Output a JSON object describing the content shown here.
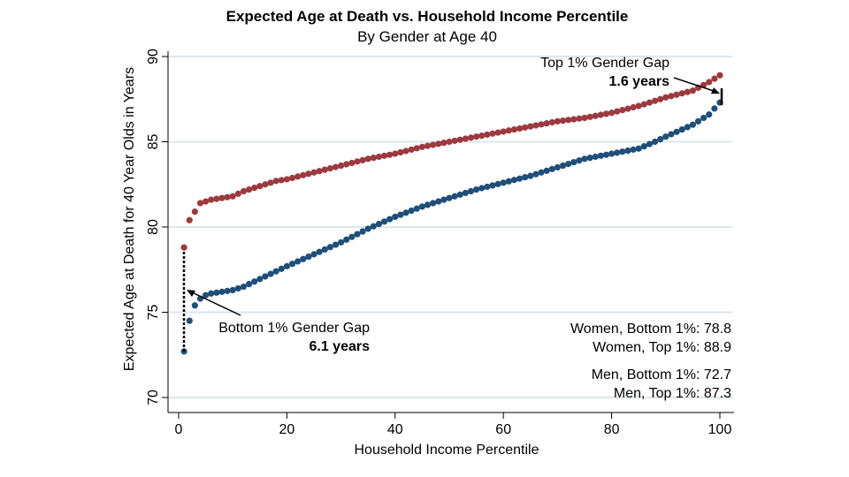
{
  "chart_data": {
    "type": "scatter",
    "title": "Expected Age at Death vs. Household Income Percentile",
    "subtitle": "By Gender at Age 40",
    "xlabel": "Household Income Percentile",
    "ylabel": "Expected Age at Death for 40 Year Olds in Years",
    "xlim": [
      0,
      100
    ],
    "ylim": [
      70,
      90
    ],
    "x_ticks": [
      "0",
      "20",
      "40",
      "60",
      "80",
      "100"
    ],
    "y_ticks": [
      "70",
      "75",
      "80",
      "85",
      "90"
    ],
    "grid": "horizontal",
    "series": [
      {
        "color": "#9b3a3f",
        "x": [
          1,
          2,
          3,
          4,
          5,
          6,
          8,
          10,
          12,
          14,
          16,
          18,
          20,
          25,
          30,
          35,
          40,
          45,
          50,
          55,
          60,
          65,
          70,
          75,
          80,
          85,
          88,
          90,
          95,
          98,
          100
        ],
        "y": [
          78.8,
          80.4,
          80.9,
          81.4,
          81.5,
          81.6,
          81.7,
          81.8,
          82.1,
          82.3,
          82.5,
          82.7,
          82.8,
          83.2,
          83.6,
          84.0,
          84.3,
          84.7,
          85.0,
          85.3,
          85.6,
          85.9,
          86.2,
          86.4,
          86.7,
          87.1,
          87.4,
          87.6,
          88.0,
          88.5,
          88.9
        ]
      },
      {
        "color": "#1f4e79",
        "x": [
          1,
          2,
          3,
          4,
          5,
          6,
          8,
          10,
          12,
          14,
          16,
          18,
          20,
          25,
          30,
          35,
          40,
          45,
          50,
          55,
          60,
          65,
          70,
          75,
          80,
          85,
          88,
          90,
          95,
          98,
          100
        ],
        "y": [
          72.7,
          74.5,
          75.4,
          75.8,
          76.0,
          76.1,
          76.2,
          76.3,
          76.5,
          76.8,
          77.1,
          77.4,
          77.7,
          78.4,
          79.1,
          79.9,
          80.6,
          81.2,
          81.7,
          82.2,
          82.6,
          83.0,
          83.5,
          84.0,
          84.3,
          84.6,
          85.0,
          85.3,
          86.0,
          86.6,
          87.3
        ]
      }
    ],
    "annotations": {
      "top_gap_label": "Top 1% Gender Gap",
      "top_gap_value": "1.6 years",
      "bottom_gap_label": "Bottom 1% Gender Gap",
      "bottom_gap_value": "6.1 years"
    },
    "stats": {
      "women_bottom": "Women, Bottom 1%: 78.8",
      "women_top": "Women, Top 1%: 88.9",
      "men_bottom": "Men, Bottom 1%: 72.7",
      "men_top": "Men, Top 1%: 87.3"
    }
  }
}
